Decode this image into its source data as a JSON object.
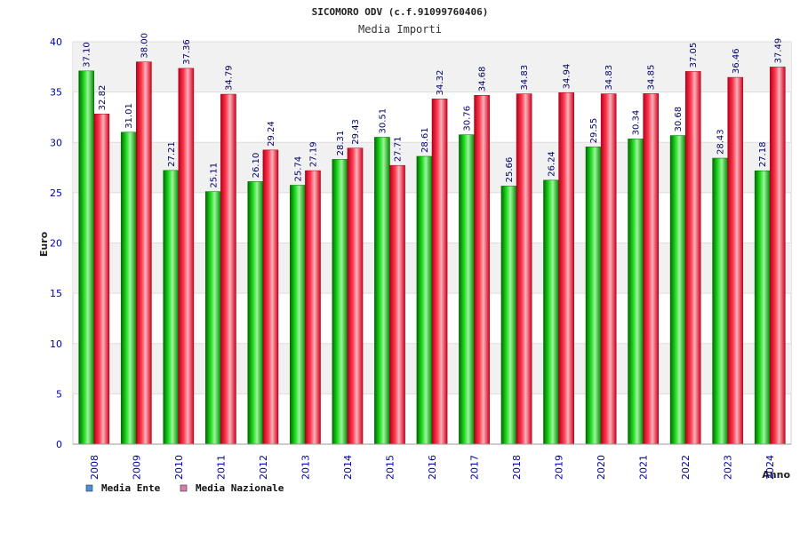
{
  "chart_data": {
    "type": "bar",
    "title": "SICOMORO ODV (c.f.91099760406)",
    "subtitle": "Media Importi",
    "xlabel": "Anno",
    "ylabel": "Euro",
    "ylim": [
      0,
      40
    ],
    "yticks": [
      0,
      5,
      10,
      15,
      20,
      25,
      30,
      35,
      40
    ],
    "grid": true,
    "legend_position": "bottom-left",
    "categories": [
      "2008",
      "2009",
      "2010",
      "2011",
      "2012",
      "2013",
      "2014",
      "2015",
      "2016",
      "2017",
      "2018",
      "2019",
      "2020",
      "2021",
      "2022",
      "2023",
      "2024"
    ],
    "series": [
      {
        "name": "Media Ente",
        "color": "#00aa00",
        "legend_color": "#4a90e2",
        "values": [
          37.1,
          31.01,
          27.21,
          25.11,
          26.1,
          25.74,
          28.31,
          30.51,
          28.61,
          30.76,
          25.66,
          26.24,
          29.55,
          30.34,
          30.68,
          28.43,
          27.18
        ],
        "labels": [
          "37.10",
          "31.01",
          "27.21",
          "25.11",
          "26.10",
          "25.74",
          "28.31",
          "30.51",
          "28.61",
          "30.76",
          "25.66",
          "26.24",
          "29.55",
          "30.34",
          "30.68",
          "28.43",
          "27.18"
        ]
      },
      {
        "name": "Media Nazionale",
        "color": "#e8102a",
        "legend_color": "#d97ab0",
        "values": [
          32.82,
          38.0,
          37.36,
          34.79,
          29.24,
          27.19,
          29.43,
          27.71,
          34.32,
          34.68,
          34.83,
          34.94,
          34.83,
          34.85,
          37.05,
          36.46,
          37.49
        ],
        "labels": [
          "32.82",
          "38.00",
          "37.36",
          "34.79",
          "29.24",
          "27.19",
          "29.43",
          "27.71",
          "34.32",
          "34.68",
          "34.83",
          "34.94",
          "34.83",
          "34.85",
          "37.05",
          "36.46",
          "37.49"
        ]
      }
    ]
  }
}
